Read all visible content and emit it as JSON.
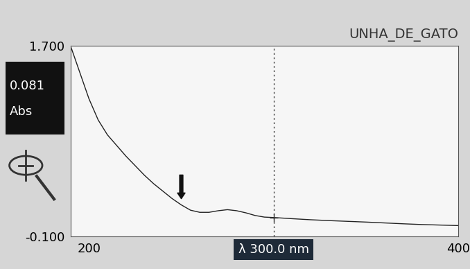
{
  "chart_data": {
    "type": "line",
    "title": "UNHA_DE_GATO",
    "x": [
      190,
      193,
      196,
      200,
      205,
      210,
      215,
      220,
      225,
      230,
      235,
      240,
      245,
      250,
      255,
      260,
      265,
      270,
      275,
      280,
      285,
      290,
      295,
      300,
      310,
      320,
      330,
      340,
      350,
      360,
      370,
      380,
      390,
      400
    ],
    "values": [
      1.7,
      1.55,
      1.4,
      1.2,
      1.0,
      0.86,
      0.76,
      0.66,
      0.57,
      0.48,
      0.4,
      0.33,
      0.26,
      0.2,
      0.15,
      0.13,
      0.13,
      0.145,
      0.155,
      0.145,
      0.125,
      0.1,
      0.085,
      0.081,
      0.07,
      0.06,
      0.052,
      0.045,
      0.038,
      0.03,
      0.022,
      0.015,
      0.01,
      0.005
    ],
    "color": "#222222",
    "xlim": [
      190,
      400
    ],
    "xticks": [
      200,
      400
    ],
    "ylim": [
      -0.1,
      1.7
    ],
    "yticks": [
      {
        "value": -0.1,
        "label": "-0.100"
      },
      {
        "value": 1.7,
        "label": "1.700"
      }
    ],
    "cursor": {
      "value": 300,
      "label": "λ 300.0 nm"
    },
    "readout": {
      "value": 0.081,
      "label": "0.081",
      "unit": "Abs"
    },
    "grid": false
  }
}
